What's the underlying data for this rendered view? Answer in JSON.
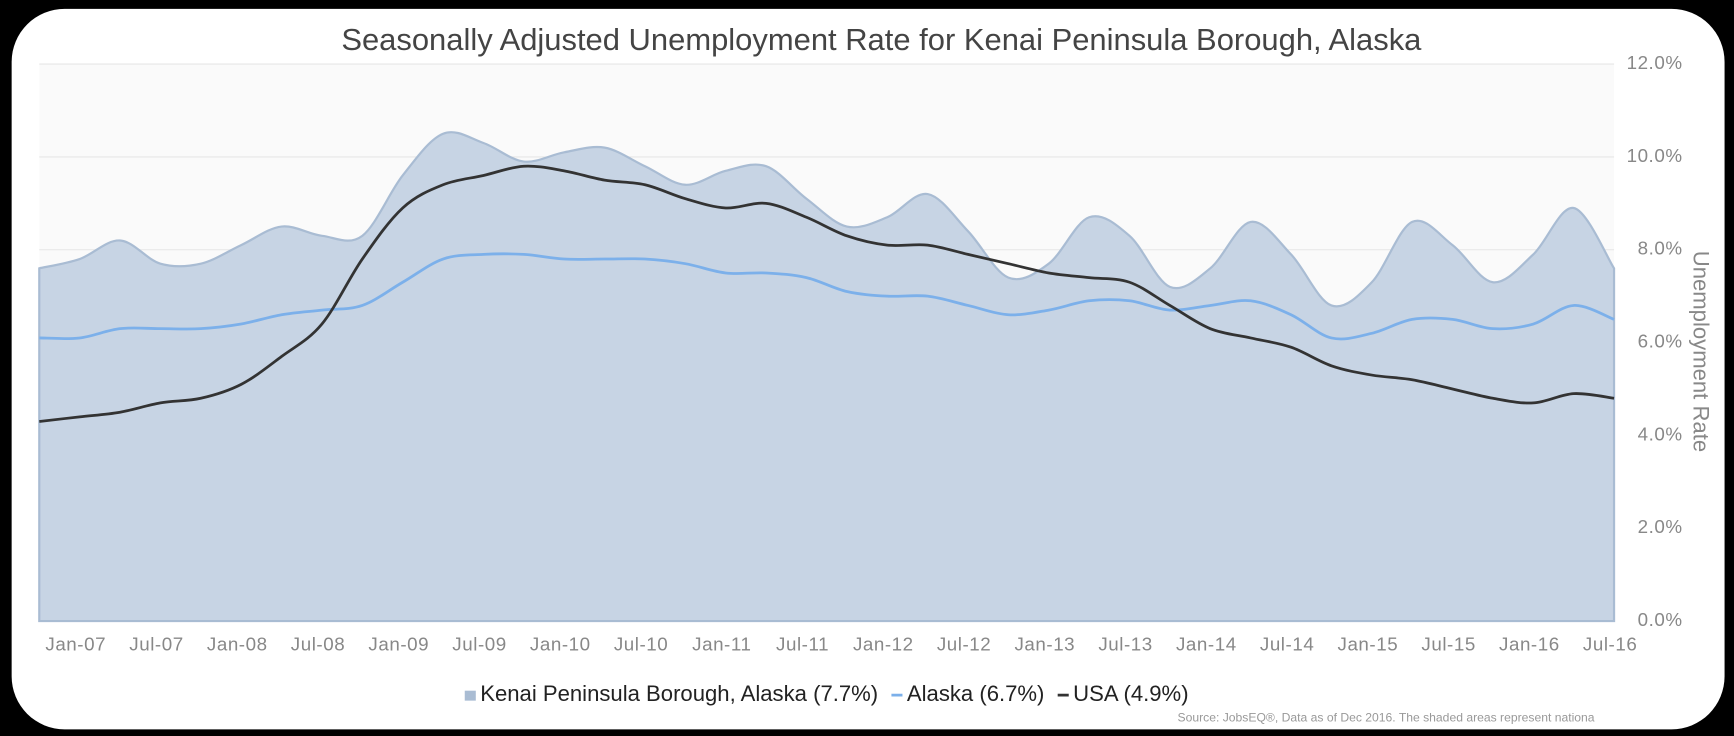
{
  "chart_data": {
    "type": "line",
    "title": "Seasonally Adjusted Unemployment Rate for Kenai Peninsula Borough, Alaska",
    "y_label": "Unemployment Rate",
    "source": "Source: JobsEQ®, Data as of Dec 2016. The shaded areas represent nationa",
    "categories": [
      "Jan-07",
      null,
      "Jul-07",
      null,
      "Jan-08",
      null,
      "Jul-08",
      null,
      "Jan-09",
      null,
      "Jul-09",
      null,
      "Jan-10",
      null,
      "Jul-10",
      null,
      "Jan-11",
      null,
      "Jul-11",
      null,
      "Jan-12",
      null,
      "Jul-12",
      null,
      "Jan-13",
      null,
      "Jul-13",
      null,
      "Jan-14",
      null,
      "Jul-14",
      null,
      "Jan-15",
      null,
      "Jul-15",
      null,
      "Jan-16",
      null,
      "Jul-16",
      null
    ],
    "series": [
      {
        "name": "Kenai Peninsula Borough, Alaska (7.7%)",
        "color": "#c7d4e4",
        "fill": true,
        "values": [
          7.6,
          7.8,
          8.2,
          7.7,
          7.7,
          8.1,
          8.5,
          8.3,
          8.3,
          9.6,
          10.5,
          10.3,
          9.9,
          10.1,
          10.2,
          9.8,
          9.4,
          9.7,
          9.8,
          9.1,
          8.5,
          8.7,
          9.2,
          8.4,
          7.4,
          7.7,
          8.7,
          8.3,
          7.2,
          7.6,
          8.6,
          7.9,
          6.8,
          7.3,
          8.6,
          8.1,
          7.3,
          7.9,
          8.9,
          7.6
        ]
      },
      {
        "name": "Alaska (6.7%)",
        "color": "#7cb0ea",
        "values": [
          6.1,
          6.1,
          6.3,
          6.3,
          6.3,
          6.4,
          6.6,
          6.7,
          6.8,
          7.3,
          7.8,
          7.9,
          7.9,
          7.8,
          7.8,
          7.8,
          7.7,
          7.5,
          7.5,
          7.4,
          7.1,
          7.0,
          7.0,
          6.8,
          6.6,
          6.7,
          6.9,
          6.9,
          6.7,
          6.8,
          6.9,
          6.6,
          6.1,
          6.2,
          6.5,
          6.5,
          6.3,
          6.4,
          6.8,
          6.5
        ]
      },
      {
        "name": "USA (4.9%)",
        "color": "#333333",
        "values": [
          4.3,
          4.4,
          4.5,
          4.7,
          4.8,
          5.1,
          5.7,
          6.4,
          7.8,
          8.9,
          9.4,
          9.6,
          9.8,
          9.7,
          9.5,
          9.4,
          9.1,
          8.9,
          9.0,
          8.7,
          8.3,
          8.1,
          8.1,
          7.9,
          7.7,
          7.5,
          7.4,
          7.3,
          6.8,
          6.3,
          6.1,
          5.9,
          5.5,
          5.3,
          5.2,
          5.0,
          4.8,
          4.7,
          4.9,
          4.8
        ]
      }
    ],
    "ylim": [
      0,
      12
    ],
    "yticks": [
      {
        "value": 0,
        "label": "0.0%"
      },
      {
        "value": 2,
        "label": "2.0%"
      },
      {
        "value": 4,
        "label": "4.0%"
      },
      {
        "value": 6,
        "label": "6.0%"
      },
      {
        "value": 8,
        "label": "8.0%"
      },
      {
        "value": 10,
        "label": "10.0%"
      },
      {
        "value": 12,
        "label": "12.0%"
      }
    ],
    "y_axis_side": "right",
    "grid": true,
    "legend": "bottom"
  }
}
